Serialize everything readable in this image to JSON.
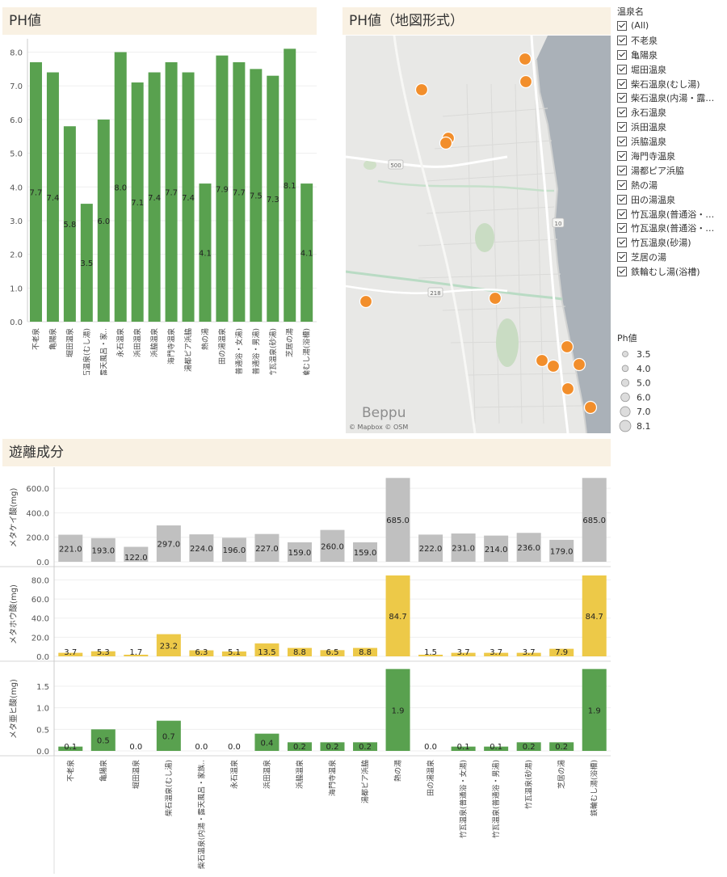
{
  "ph_panel": {
    "title": "PH値",
    "chart_data": {
      "type": "bar",
      "categories": [
        "不老泉",
        "亀陽泉",
        "堀田温泉",
        "柴石温泉(むし湯)",
        "柴石温泉(内湯・露天風呂・家..",
        "永石温泉",
        "浜田温泉",
        "浜脇温泉",
        "海門寺温泉",
        "湯都ピア浜脇",
        "熱の湯",
        "田の湯温泉",
        "竹瓦温泉(普通浴・女湯)",
        "竹瓦温泉(普通浴・男湯)",
        "竹瓦温泉(砂湯)",
        "芝居の湯",
        "鉄輪むし湯(浴槽)"
      ],
      "values": [
        7.7,
        7.4,
        5.8,
        3.5,
        6.0,
        8.0,
        7.1,
        7.4,
        7.7,
        7.4,
        4.1,
        7.9,
        7.7,
        7.5,
        7.3,
        8.1,
        4.1
      ],
      "value_labels": [
        "7.7",
        "7.4",
        "5.8",
        "3.5",
        "6.0",
        "8.0",
        "7.1",
        "7.4",
        "7.7",
        "7.4",
        "4.1",
        "7.9",
        "7.7",
        "7.5",
        "7.3",
        "8.1",
        "4.1"
      ],
      "yticks": [
        "0.0",
        "1.0",
        "2.0",
        "3.0",
        "4.0",
        "5.0",
        "6.0",
        "7.0",
        "8.0"
      ],
      "ylim": [
        0,
        8.3
      ],
      "color": "#59a14f"
    }
  },
  "map_panel": {
    "title": "PH値（地図形式）",
    "city_label": "Beppu",
    "attribution": "© Mapbox  © OSM",
    "road_labels": [
      "500",
      "10",
      "218"
    ],
    "marker_color": "#f28e2b"
  },
  "filter": {
    "title": "温泉名",
    "items": [
      "(All)",
      "不老泉",
      "亀陽泉",
      "堀田温泉",
      "柴石温泉(むし湯)",
      "柴石温泉(内湯・露天...",
      "永石温泉",
      "浜田温泉",
      "浜脇温泉",
      "海門寺温泉",
      "湯都ピア浜脇",
      "熱の湯",
      "田の湯温泉",
      "竹瓦温泉(普通浴・女...",
      "竹瓦温泉(普通浴・男...",
      "竹瓦温泉(砂湯)",
      "芝居の湯",
      "鉄輪むし湯(浴槽)"
    ]
  },
  "size_legend": {
    "title": "Ph値",
    "items": [
      "3.5",
      "4.0",
      "5.0",
      "6.0",
      "7.0",
      "8.1"
    ]
  },
  "components_panel": {
    "title": "遊離成分",
    "chart_data": {
      "type": "bar",
      "categories": [
        "不老泉",
        "亀陽泉",
        "堀田温泉",
        "柴石温泉(むし湯)",
        "柴石温泉(内湯・露天風呂・家族..",
        "永石温泉",
        "浜田温泉",
        "浜脇温泉",
        "海門寺温泉",
        "湯都ピア浜脇",
        "熱の湯",
        "田の湯温泉",
        "竹瓦温泉(普通浴・女湯)",
        "竹瓦温泉(普通浴・男湯)",
        "竹瓦温泉(砂湯)",
        "芝居の湯",
        "鉄輪むし湯(浴槽)"
      ],
      "series": [
        {
          "name": "メタケイ酸(mg)",
          "values": [
            221,
            193,
            122,
            297,
            224,
            196,
            227,
            159,
            260,
            159,
            685,
            222,
            231,
            214,
            236,
            179,
            685
          ],
          "value_labels": [
            "221.0",
            "193.0",
            "122.0",
            "297.0",
            "224.0",
            "196.0",
            "227.0",
            "159.0",
            "260.0",
            "159.0",
            "685.0",
            "222.0",
            "231.0",
            "214.0",
            "236.0",
            "179.0",
            "685.0"
          ],
          "yticks": [
            "0.0",
            "200.0",
            "400.0",
            "600.0"
          ],
          "ylim": [
            0,
            720
          ],
          "color": "#c0c0c0"
        },
        {
          "name": "メタホウ酸(mg)",
          "values": [
            3.7,
            5.3,
            1.7,
            23.2,
            6.3,
            5.1,
            13.5,
            8.8,
            6.5,
            8.8,
            84.7,
            1.5,
            3.7,
            3.7,
            3.7,
            7.9,
            84.7
          ],
          "value_labels": [
            "3.7",
            "5.3",
            "1.7",
            "23.2",
            "6.3",
            "5.1",
            "13.5",
            "8.8",
            "6.5",
            "8.8",
            "84.7",
            "1.5",
            "3.7",
            "3.7",
            "3.7",
            "7.9",
            "84.7"
          ],
          "yticks": [
            "0.0",
            "20.0",
            "40.0",
            "60.0",
            "80.0"
          ],
          "ylim": [
            0,
            88
          ],
          "color": "#edc948"
        },
        {
          "name": "メタ亜ヒ酸(mg)",
          "values": [
            0.1,
            0.5,
            0.0,
            0.7,
            0.0,
            0.0,
            0.4,
            0.2,
            0.2,
            0.2,
            1.9,
            0.0,
            0.1,
            0.1,
            0.2,
            0.2,
            1.9
          ],
          "value_labels": [
            "0.1",
            "0.5",
            "0.0",
            "0.7",
            "0.0",
            "0.0",
            "0.4",
            "0.2",
            "0.2",
            "0.2",
            "1.9",
            "0.0",
            "0.1",
            "0.1",
            "0.2",
            "0.2",
            "1.9"
          ],
          "yticks": [
            "0.0",
            "0.5",
            "1.0",
            "1.5"
          ],
          "ylim": [
            0,
            1.95
          ],
          "color": "#59a14f"
        }
      ]
    }
  }
}
